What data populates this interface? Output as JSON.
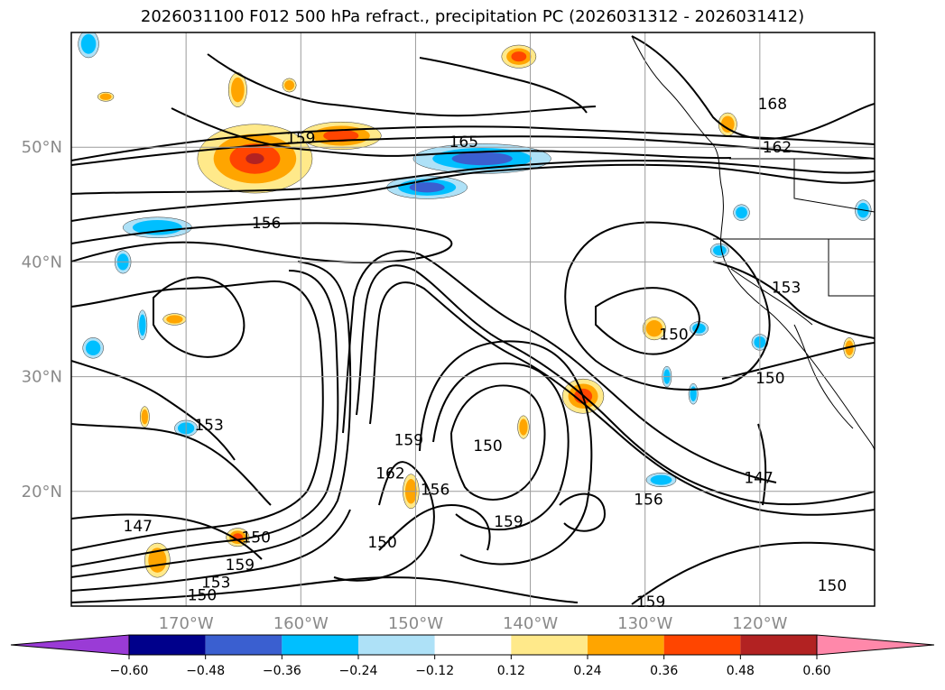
{
  "title": "2026031100 F012 500 hPa refract., precipitation PC (2026031312 - 2026031412)",
  "chart_data": {
    "type": "contour-map",
    "title": "2026031100 F012 500 hPa refract., precipitation PC (2026031312 - 2026031412)",
    "region": {
      "lon_range": [
        180,
        110
      ],
      "lat_range": [
        10,
        60
      ]
    },
    "grid": true,
    "lat_ticks": [
      {
        "value": 50,
        "label": "50°N"
      },
      {
        "value": 40,
        "label": "40°N"
      },
      {
        "value": 30,
        "label": "30°N"
      },
      {
        "value": 20,
        "label": "20°N"
      }
    ],
    "lon_ticks": [
      {
        "value": 170,
        "label": "170°W"
      },
      {
        "value": 160,
        "label": "160°W"
      },
      {
        "value": 150,
        "label": "150°W"
      },
      {
        "value": 140,
        "label": "140°W"
      },
      {
        "value": 130,
        "label": "130°W"
      },
      {
        "value": 120,
        "label": "120°W"
      }
    ],
    "contour_labels": [
      {
        "text": "159",
        "lon": 160.0,
        "lat": 50.8
      },
      {
        "text": "165",
        "lon": 145.8,
        "lat": 50.5
      },
      {
        "text": "168",
        "lon": 118.9,
        "lat": 53.8
      },
      {
        "text": "162",
        "lon": 118.5,
        "lat": 50.0
      },
      {
        "text": "156",
        "lon": 163.0,
        "lat": 43.4
      },
      {
        "text": "153",
        "lon": 117.7,
        "lat": 37.8
      },
      {
        "text": "150",
        "lon": 127.5,
        "lat": 33.7
      },
      {
        "text": "150",
        "lon": 119.1,
        "lat": 29.9
      },
      {
        "text": "153",
        "lon": 168.0,
        "lat": 25.8
      },
      {
        "text": "150",
        "lon": 143.7,
        "lat": 24.0
      },
      {
        "text": "159",
        "lon": 150.6,
        "lat": 24.5
      },
      {
        "text": "156",
        "lon": 148.3,
        "lat": 20.2
      },
      {
        "text": "162",
        "lon": 152.2,
        "lat": 21.6
      },
      {
        "text": "147",
        "lon": 120.1,
        "lat": 21.2
      },
      {
        "text": "156",
        "lon": 129.7,
        "lat": 19.3
      },
      {
        "text": "159",
        "lon": 141.9,
        "lat": 17.4
      },
      {
        "text": "147",
        "lon": 174.2,
        "lat": 17.0
      },
      {
        "text": "150",
        "lon": 163.9,
        "lat": 16.0
      },
      {
        "text": "150",
        "lon": 152.9,
        "lat": 15.6
      },
      {
        "text": "159",
        "lon": 165.3,
        "lat": 13.6
      },
      {
        "text": "153",
        "lon": 167.4,
        "lat": 12.1
      },
      {
        "text": "150",
        "lon": 168.6,
        "lat": 11.0
      },
      {
        "text": "150",
        "lon": 113.7,
        "lat": 11.8
      },
      {
        "text": "159",
        "lon": 129.5,
        "lat": 10.4
      }
    ],
    "colorbar": {
      "levels": [
        -0.6,
        -0.48,
        -0.36,
        -0.24,
        -0.12,
        0.12,
        0.24,
        0.36,
        0.48,
        0.6
      ],
      "tick_labels": [
        "−0.60",
        "−0.48",
        "−0.36",
        "−0.24",
        "−0.12",
        "0.12",
        "0.24",
        "0.36",
        "0.48",
        "0.60"
      ],
      "colors": [
        "#9a3bd6",
        "#00008b",
        "#3a5fd0",
        "#00bfff",
        "#aee1f7",
        "#ffffff",
        "#ffe98a",
        "#ffa500",
        "#ff4500",
        "#b22222",
        "#ff88aa"
      ],
      "extend": "both"
    },
    "precip_areas": [
      {
        "lon": 164.0,
        "lat": 49.0,
        "rx": 5.0,
        "ry": 3.0,
        "value": 0.5
      },
      {
        "lon": 156.5,
        "lat": 51.0,
        "rx": 3.5,
        "ry": 1.2,
        "value": 0.38
      },
      {
        "lon": 165.5,
        "lat": 55.0,
        "rx": 0.8,
        "ry": 1.5,
        "value": 0.3
      },
      {
        "lon": 161.0,
        "lat": 55.4,
        "rx": 0.6,
        "ry": 0.6,
        "value": 0.26
      },
      {
        "lon": 141.0,
        "lat": 57.9,
        "rx": 1.5,
        "ry": 1.0,
        "value": 0.4
      },
      {
        "lon": 144.2,
        "lat": 49.0,
        "rx": 6.0,
        "ry": 1.3,
        "value": -0.48
      },
      {
        "lon": 149.0,
        "lat": 46.5,
        "rx": 3.5,
        "ry": 1.0,
        "value": -0.45
      },
      {
        "lon": 172.5,
        "lat": 43.0,
        "rx": 3.0,
        "ry": 0.9,
        "value": -0.3
      },
      {
        "lon": 175.5,
        "lat": 40.0,
        "rx": 0.7,
        "ry": 1.0,
        "value": -0.3
      },
      {
        "lon": 173.8,
        "lat": 34.5,
        "rx": 0.4,
        "ry": 1.3,
        "value": -0.3
      },
      {
        "lon": 178.1,
        "lat": 32.5,
        "rx": 0.9,
        "ry": 0.9,
        "value": -0.3
      },
      {
        "lon": 170.0,
        "lat": 25.5,
        "rx": 1.0,
        "ry": 0.7,
        "value": -0.3
      },
      {
        "lon": 135.4,
        "lat": 28.3,
        "rx": 1.8,
        "ry": 1.5,
        "value": 0.4
      },
      {
        "lon": 129.2,
        "lat": 34.2,
        "rx": 1.0,
        "ry": 1.0,
        "value": 0.3
      },
      {
        "lon": 140.6,
        "lat": 25.6,
        "rx": 0.5,
        "ry": 1.0,
        "value": 0.3
      },
      {
        "lon": 150.4,
        "lat": 20.0,
        "rx": 0.7,
        "ry": 1.5,
        "value": 0.28
      },
      {
        "lon": 165.5,
        "lat": 16.0,
        "rx": 1.0,
        "ry": 0.8,
        "value": 0.4
      },
      {
        "lon": 172.5,
        "lat": 14.0,
        "rx": 1.1,
        "ry": 1.5,
        "value": 0.3
      },
      {
        "lon": 171.0,
        "lat": 35.0,
        "rx": 1.0,
        "ry": 0.5,
        "value": 0.28
      },
      {
        "lon": 173.6,
        "lat": 26.5,
        "rx": 0.4,
        "ry": 0.9,
        "value": 0.28
      },
      {
        "lon": 128.6,
        "lat": 21.0,
        "rx": 1.3,
        "ry": 0.6,
        "value": -0.3
      },
      {
        "lon": 125.3,
        "lat": 34.2,
        "rx": 0.8,
        "ry": 0.6,
        "value": -0.26
      },
      {
        "lon": 120.0,
        "lat": 33.0,
        "rx": 0.7,
        "ry": 0.7,
        "value": -0.3
      },
      {
        "lon": 128.1,
        "lat": 30.0,
        "rx": 0.4,
        "ry": 0.9,
        "value": -0.26
      },
      {
        "lon": 125.8,
        "lat": 28.5,
        "rx": 0.4,
        "ry": 0.9,
        "value": -0.26
      },
      {
        "lon": 122.8,
        "lat": 52.0,
        "rx": 0.8,
        "ry": 1.0,
        "value": 0.3
      },
      {
        "lon": 121.6,
        "lat": 44.3,
        "rx": 0.7,
        "ry": 0.7,
        "value": -0.26
      },
      {
        "lon": 123.5,
        "lat": 41.0,
        "rx": 0.8,
        "ry": 0.6,
        "value": -0.26
      },
      {
        "lon": 112.2,
        "lat": 32.5,
        "rx": 0.5,
        "ry": 0.9,
        "value": 0.3
      },
      {
        "lon": 178.5,
        "lat": 59.0,
        "rx": 0.9,
        "ry": 1.2,
        "value": -0.3
      },
      {
        "lon": 111.0,
        "lat": 44.5,
        "rx": 0.7,
        "ry": 0.9,
        "value": -0.26
      },
      {
        "lon": 177.0,
        "lat": 54.4,
        "rx": 0.7,
        "ry": 0.4,
        "value": 0.26
      }
    ]
  }
}
